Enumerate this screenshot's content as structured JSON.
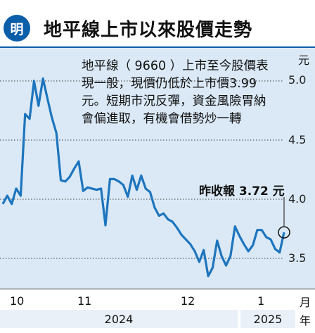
{
  "header": {
    "logo_text": "明",
    "title": "地平線上市以來股價走勢"
  },
  "annotation": "地平線（ 9660 ）上市至今股價表現一般，現價仍低於上市價3.99元。短期市況反彈，資金風險胃納會偏進取，有機會借勢炒一轉",
  "callout": "昨收報 3.72 元",
  "colors": {
    "line": "#1d75bd",
    "plot_bg": "#dbe9f6",
    "brand": "#0b5ea8"
  },
  "axis": {
    "y_unit": "元",
    "y_ticks": [
      "5.0",
      "4.5",
      "4.0",
      "3.5"
    ],
    "x_ticks": [
      "10",
      "11",
      "12",
      "1"
    ],
    "x_unit": "月",
    "year_unit": "年",
    "years": [
      "2024",
      "2025"
    ]
  },
  "chart_data": {
    "type": "line",
    "title": "地平線上市以來股價走勢",
    "xlabel": "",
    "ylabel": "元",
    "ylim": [
      3.3,
      5.2
    ],
    "grid": true,
    "series": [
      {
        "name": "",
        "values": [
          3.96,
          4.03,
          3.96,
          4.09,
          4.03,
          4.72,
          4.68,
          5.0,
          4.79,
          5.02,
          4.85,
          4.69,
          4.56,
          4.16,
          4.15,
          4.19,
          4.26,
          4.32,
          4.07,
          4.1,
          4.09,
          4.08,
          4.09,
          3.78,
          4.17,
          4.17,
          4.15,
          4.12,
          4.02,
          4.2,
          4.08,
          4.2,
          4.09,
          4.06,
          3.93,
          3.86,
          3.88,
          3.83,
          3.81,
          3.76,
          3.7,
          3.66,
          3.62,
          3.56,
          3.47,
          3.57,
          3.35,
          3.42,
          3.65,
          3.52,
          3.44,
          3.52,
          3.77,
          3.69,
          3.62,
          3.56,
          3.61,
          3.74,
          3.74,
          3.68,
          3.66,
          3.58,
          3.55,
          3.72
        ]
      }
    ],
    "last_value": 3.72,
    "reference_value": 3.99
  }
}
